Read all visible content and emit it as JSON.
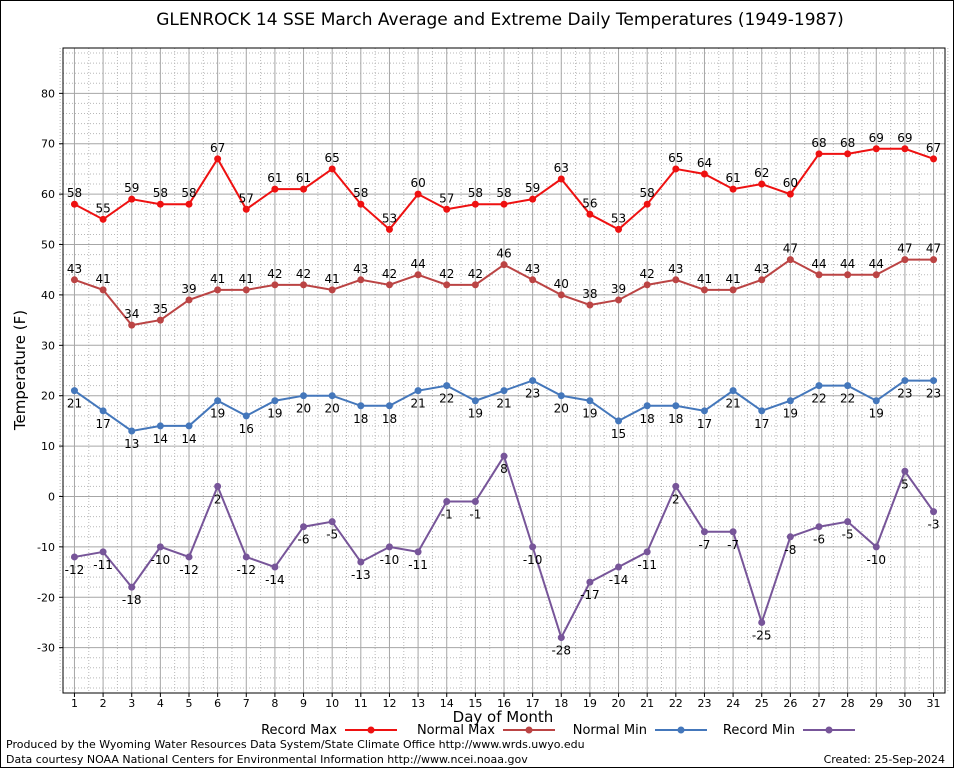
{
  "chart_data": {
    "type": "line",
    "title": "GLENROCK 14 SSE March Average and Extreme Daily Temperatures (1949-1987)",
    "xlabel": "Day of Month",
    "ylabel": "Temperature (F)",
    "x": [
      1,
      2,
      3,
      4,
      5,
      6,
      7,
      8,
      9,
      10,
      11,
      12,
      13,
      14,
      15,
      16,
      17,
      18,
      19,
      20,
      21,
      22,
      23,
      24,
      25,
      26,
      27,
      28,
      29,
      30,
      31
    ],
    "xlim": [
      0.6,
      31.4
    ],
    "ylim": [
      -39,
      89
    ],
    "yticks": [
      -30,
      -20,
      -10,
      0,
      10,
      20,
      30,
      40,
      50,
      60,
      70,
      80
    ],
    "grid": true,
    "legend_position": "bottom",
    "series": [
      {
        "name": "Record Max",
        "color": "#ee1111",
        "label_pos": "above",
        "values": [
          58,
          55,
          59,
          58,
          58,
          67,
          57,
          61,
          61,
          65,
          58,
          53,
          60,
          57,
          58,
          58,
          59,
          63,
          56,
          53,
          58,
          65,
          64,
          61,
          62,
          60,
          68,
          68,
          69,
          69,
          67
        ]
      },
      {
        "name": "Normal Max",
        "color": "#bb4444",
        "label_pos": "above",
        "values": [
          43,
          41,
          34,
          35,
          39,
          41,
          41,
          42,
          42,
          41,
          43,
          42,
          44,
          42,
          42,
          46,
          43,
          40,
          38,
          39,
          42,
          43,
          41,
          41,
          43,
          47,
          44,
          44,
          44,
          47,
          47
        ]
      },
      {
        "name": "Normal Min",
        "color": "#4477bb",
        "label_pos": "below",
        "values": [
          21,
          17,
          13,
          14,
          14,
          19,
          16,
          19,
          20,
          20,
          18,
          18,
          21,
          22,
          19,
          21,
          23,
          20,
          19,
          15,
          18,
          18,
          17,
          21,
          17,
          19,
          22,
          22,
          19,
          23,
          23
        ]
      },
      {
        "name": "Record Min",
        "color": "#775599",
        "label_pos": "below",
        "values": [
          -12,
          -11,
          -18,
          -10,
          -12,
          2,
          -12,
          -14,
          -6,
          -5,
          -13,
          -10,
          -11,
          -1,
          -1,
          8,
          -10,
          -28,
          -17,
          -14,
          -11,
          2,
          -7,
          -7,
          -25,
          -8,
          -6,
          -5,
          -10,
          5,
          -3
        ]
      }
    ]
  },
  "footer": {
    "line1": "Produced by the Wyoming Water Resources Data System/State Climate Office http://www.wrds.uwyo.edu",
    "line2": "Data courtesy NOAA National Centers for Environmental Information http://www.ncei.noaa.gov",
    "created": "Created:  25-Sep-2024"
  }
}
